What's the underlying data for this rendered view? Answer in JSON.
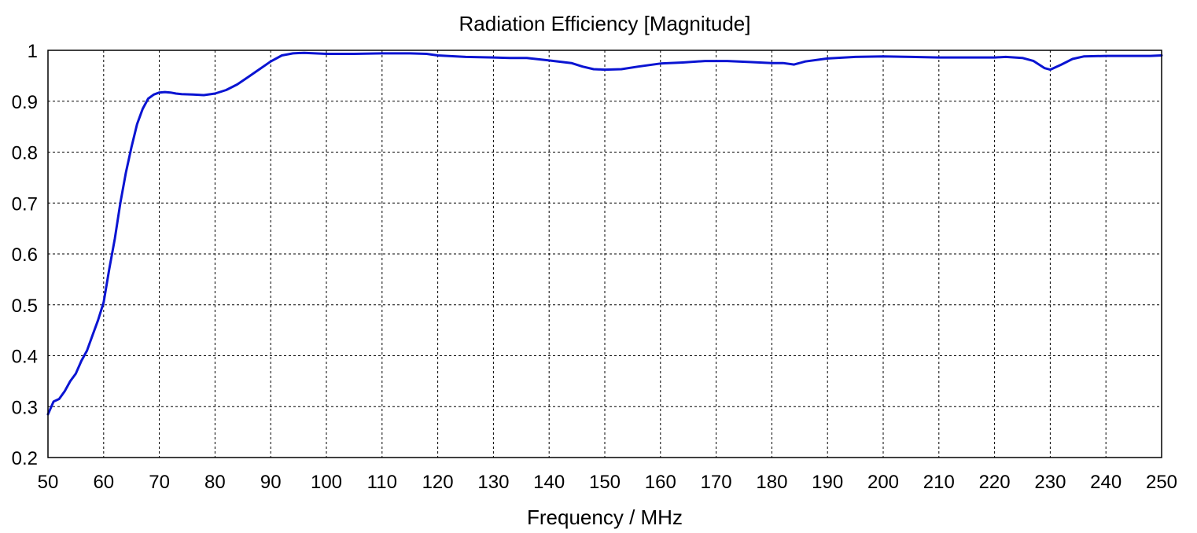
{
  "chart_data": {
    "type": "line",
    "title": "Radiation Efficiency [Magnitude]",
    "xlabel": "Frequency / MHz",
    "ylabel": "",
    "xlim": [
      50,
      250
    ],
    "ylim": [
      0.2,
      1
    ],
    "xticks": [
      50,
      60,
      70,
      80,
      90,
      100,
      110,
      120,
      130,
      140,
      150,
      160,
      170,
      180,
      190,
      200,
      210,
      220,
      230,
      240,
      250
    ],
    "xtick_labels": [
      "50",
      "60",
      "70",
      "80",
      "90",
      "100",
      "110",
      "120",
      "130",
      "140",
      "150",
      "160",
      "170",
      "180",
      "190",
      "200",
      "210",
      "220",
      "230",
      "240",
      "250"
    ],
    "yticks": [
      0.2,
      0.3,
      0.4,
      0.5,
      0.6,
      0.7,
      0.8,
      0.9,
      1
    ],
    "ytick_labels": [
      "0.2",
      "0.3",
      "0.4",
      "0.5",
      "0.6",
      "0.7",
      "0.8",
      "0.9",
      "1"
    ],
    "grid": true,
    "legend": "none",
    "series": [
      {
        "color": "#0a14d2",
        "x": [
          50,
          51,
          52,
          53,
          54,
          55,
          56,
          57,
          58,
          59,
          60,
          61,
          62,
          63,
          64,
          65,
          66,
          67,
          68,
          69,
          70,
          71,
          72,
          73,
          74,
          76,
          78,
          80,
          82,
          84,
          86,
          88,
          90,
          92,
          94,
          96,
          98,
          100,
          105,
          110,
          115,
          118,
          120,
          125,
          130,
          133,
          136,
          140,
          144,
          146,
          148,
          150,
          153,
          156,
          160,
          164,
          168,
          172,
          176,
          180,
          182,
          184,
          186,
          190,
          195,
          200,
          205,
          210,
          215,
          220,
          222,
          225,
          227,
          229,
          230,
          232,
          234,
          236,
          240,
          245,
          248,
          250
        ],
        "y": [
          0.285,
          0.31,
          0.315,
          0.33,
          0.35,
          0.365,
          0.39,
          0.41,
          0.44,
          0.47,
          0.505,
          0.57,
          0.63,
          0.7,
          0.76,
          0.81,
          0.855,
          0.885,
          0.905,
          0.913,
          0.917,
          0.918,
          0.917,
          0.915,
          0.914,
          0.913,
          0.912,
          0.915,
          0.922,
          0.933,
          0.948,
          0.963,
          0.978,
          0.99,
          0.994,
          0.995,
          0.994,
          0.993,
          0.993,
          0.994,
          0.994,
          0.993,
          0.99,
          0.987,
          0.986,
          0.985,
          0.985,
          0.98,
          0.975,
          0.968,
          0.963,
          0.962,
          0.963,
          0.968,
          0.974,
          0.976,
          0.979,
          0.979,
          0.977,
          0.975,
          0.975,
          0.972,
          0.978,
          0.984,
          0.987,
          0.988,
          0.987,
          0.986,
          0.986,
          0.986,
          0.987,
          0.985,
          0.979,
          0.965,
          0.962,
          0.972,
          0.983,
          0.988,
          0.989,
          0.989,
          0.989,
          0.99
        ]
      }
    ]
  }
}
